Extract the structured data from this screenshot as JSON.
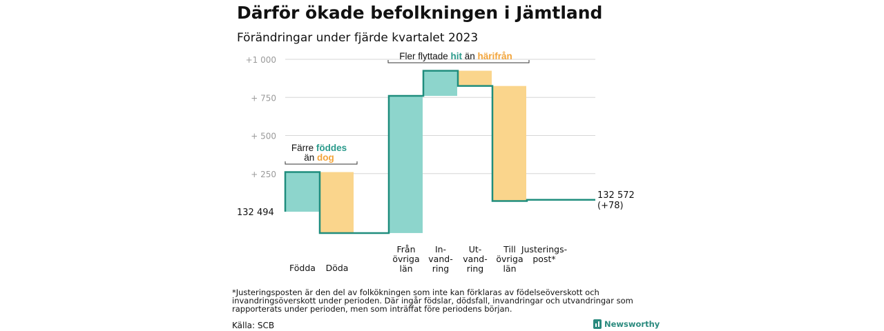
{
  "title": "Därför ökade befolkningen i Jämtland",
  "subtitle": "Förändringar under fjärde kvartalet 2023",
  "footnote": "*Justeringsposten är den del av folkökningen som inte kan förklaras av födelseöverskott och invandringsöverskott under perioden. Där ingår födslar, dödsfall, invandringar och utvandringar som rapporterats under perioden, men som inträffat före periodens början.",
  "source": "Källa: SCB",
  "logo_text": "Newsworthy",
  "colors": {
    "positive": "#8dd5cc",
    "negative": "#fad58c",
    "line": "#1f8d7d",
    "grid": "#d6d6d6",
    "hit": "#2a9a8b",
    "harifran": "#f2a43a"
  },
  "annotations": {
    "born": {
      "line1_pre": "Färre ",
      "line1_hl": "föddes",
      "line2_pre": "än ",
      "line2_hl": "dog"
    },
    "moved": {
      "pre": "Fler flyttade ",
      "hl1": "hit",
      "mid": " än ",
      "hl2": "härifrån"
    }
  },
  "chart_data": {
    "type": "waterfall",
    "start_label": "132  494",
    "end_label_line1": "132 572",
    "end_label_line2": "(+78)",
    "y_ticks": [
      "+1  000",
      "+  750",
      "+  500",
      "+  250"
    ],
    "y_tick_values": [
      1000,
      750,
      500,
      250
    ],
    "ylim": [
      -150,
      1010
    ],
    "grid": true,
    "categories": [
      {
        "lines": [
          "Födda"
        ],
        "value": 260
      },
      {
        "lines": [
          "Döda"
        ],
        "value": -400
      },
      {
        "lines": [
          "",
          "",
          ""
        ],
        "value": 0
      },
      {
        "lines": [
          "Från",
          "övriga",
          "län"
        ],
        "value": 900
      },
      {
        "lines": [
          "In-",
          "vand-",
          "ring"
        ],
        "value": 165
      },
      {
        "lines": [
          "Ut-",
          "vand-",
          "ring"
        ],
        "value": -100
      },
      {
        "lines": [
          "Till",
          "övriga",
          "län"
        ],
        "value": -755
      },
      {
        "lines": [
          "Justerings-",
          "post*"
        ],
        "value": 8
      }
    ],
    "end_value": 78
  }
}
